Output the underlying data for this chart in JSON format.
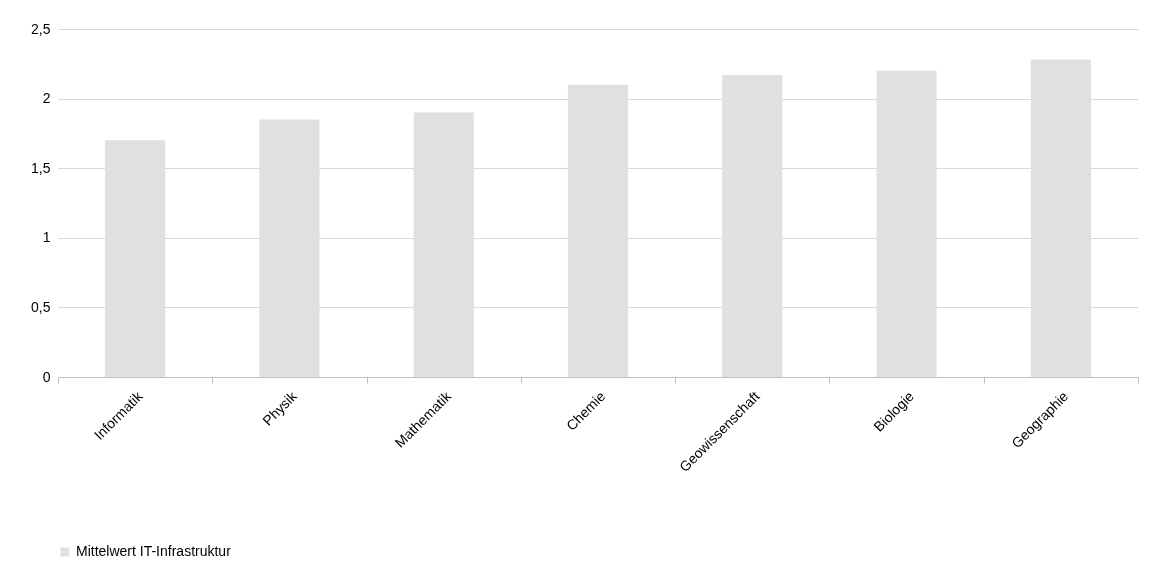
{
  "chart_data": {
    "type": "bar",
    "categories": [
      "Informatik",
      "Physik",
      "Mathematik",
      "Chemie",
      "Geowissenschaft",
      "Biologie",
      "Geographie"
    ],
    "series": [
      {
        "name": "Mittelwert IT-Infrastruktur",
        "color": "#e0e0e0",
        "values": [
          1.7,
          1.85,
          1.9,
          2.1,
          2.17,
          2.2,
          2.28
        ]
      }
    ],
    "ylim": [
      0,
      2.5
    ],
    "yticks": [
      0,
      {
        "value": 0.5,
        "label": "0,5"
      },
      1,
      {
        "value": 1.5,
        "label": "1,5"
      },
      2,
      {
        "value": 2.5,
        "label": "2,5"
      }
    ],
    "grid": "y",
    "legend": "bottom"
  }
}
